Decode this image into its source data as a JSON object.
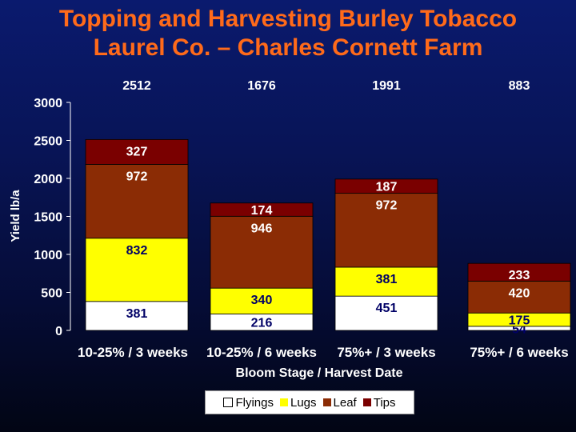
{
  "title": {
    "line1": "Topping and Harvesting Burley Tobacco",
    "line2": "Laurel Co. – Charles Cornett Farm"
  },
  "colors": {
    "title": "#ff6a1a",
    "Flyings": "#ffffff",
    "Lugs": "#ffff00",
    "Leaf": "#8b2c05",
    "Tips": "#7a0000",
    "axis_text": "#ffffff",
    "label_text": "#000066"
  },
  "chart_data": {
    "type": "bar",
    "stacked": true,
    "categories": [
      "10-25% / 3 weeks",
      "10-25% / 6 weeks",
      "75%+ / 3 weeks",
      "75%+ / 6 weeks"
    ],
    "totals": [
      "2512",
      "1676",
      "1991",
      "883"
    ],
    "series": [
      {
        "name": "Flyings",
        "values": [
          381,
          216,
          451,
          54
        ]
      },
      {
        "name": "Lugs",
        "values": [
          832,
          340,
          381,
          175
        ]
      },
      {
        "name": "Leaf",
        "values": [
          972,
          946,
          972,
          420
        ]
      },
      {
        "name": "Tips",
        "values": [
          327,
          174,
          187,
          233
        ]
      }
    ],
    "xlabel": "Bloom Stage / Harvest Date",
    "ylabel": "Yield lb/a",
    "ylim": [
      0,
      3000
    ],
    "yticks": [
      0,
      500,
      1000,
      1500,
      2000,
      2500,
      3000
    ],
    "legend": [
      "Flyings",
      "Lugs",
      "Leaf",
      "Tips"
    ]
  }
}
